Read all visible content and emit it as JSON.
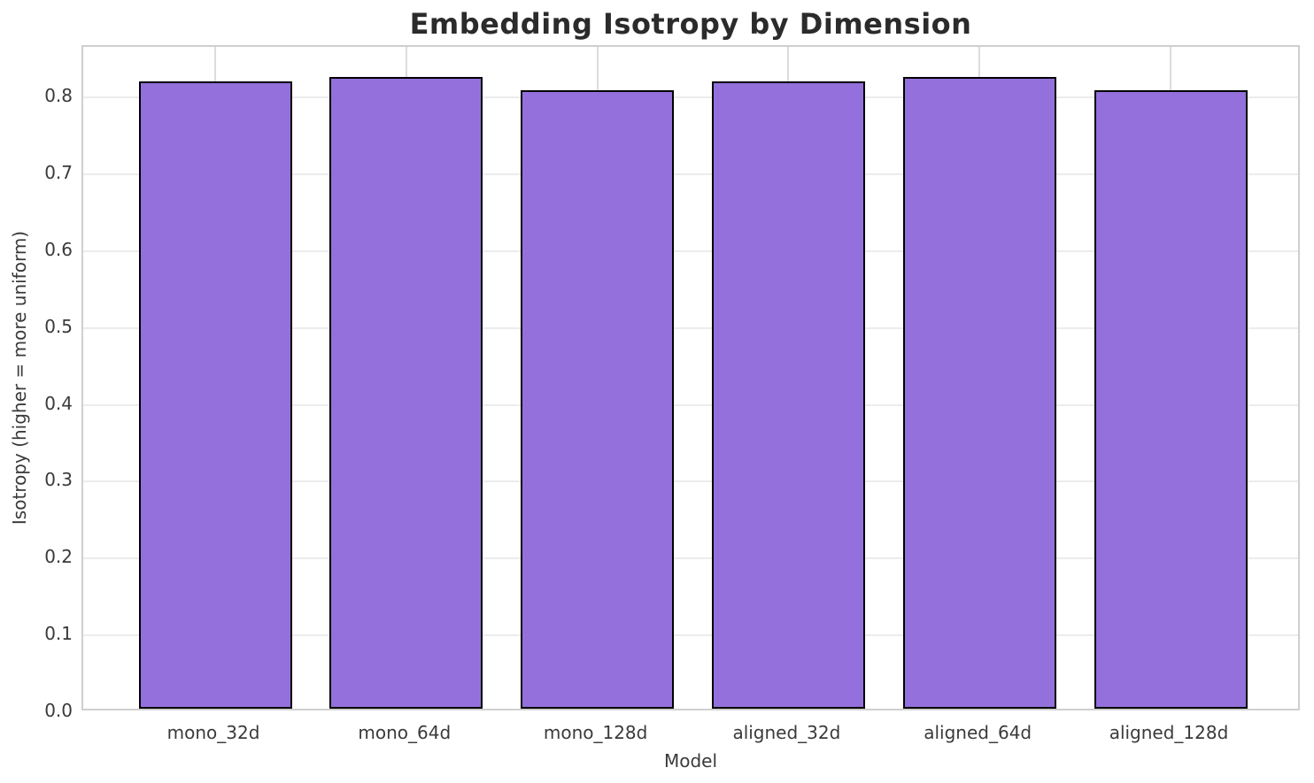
{
  "chart_data": {
    "type": "bar",
    "title": "Embedding Isotropy by Dimension",
    "xlabel": "Model",
    "ylabel": "Isotropy (higher = more uniform)",
    "categories": [
      "mono_32d",
      "mono_64d",
      "mono_128d",
      "aligned_32d",
      "aligned_64d",
      "aligned_128d"
    ],
    "values": [
      0.817,
      0.822,
      0.805,
      0.817,
      0.822,
      0.805
    ],
    "ylim": [
      0.0,
      0.866
    ],
    "yticks": [
      0.0,
      0.1,
      0.2,
      0.3,
      0.4,
      0.5,
      0.6,
      0.7,
      0.8
    ],
    "grid": true,
    "legend_position": "none",
    "bar_color": "#9370DB",
    "bar_edge_color": "#000000",
    "grid_color": "#ececec",
    "spine_color": "#cfcfcf",
    "title_color": "#2b2b2b",
    "label_color": "#3a3a3a"
  }
}
